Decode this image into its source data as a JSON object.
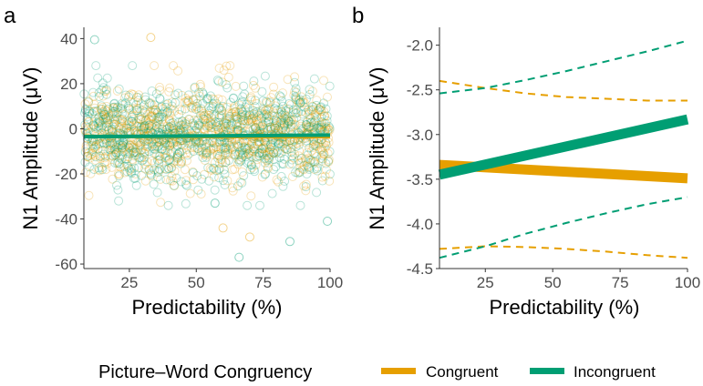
{
  "figure": {
    "legend_title": "Picture–Word Congruency"
  },
  "colors": {
    "congruent": "#E69F00",
    "incongruent": "#009E73",
    "tick": "#4d4d4d",
    "axis": "#333333"
  },
  "legend": [
    {
      "label": "Congruent",
      "color": "#E69F00"
    },
    {
      "label": "Incongruent",
      "color": "#009E73"
    }
  ],
  "chart_data": [
    {
      "panel": "a",
      "type": "scatter",
      "xlabel": "Predictability (%)",
      "ylabel": "N1 Amplitude (μV)",
      "xlim": [
        8,
        100
      ],
      "ylim": [
        -62,
        45
      ],
      "xticks": [
        25,
        50,
        75,
        100
      ],
      "yticks": [
        -60,
        -40,
        -20,
        0,
        20,
        40
      ],
      "grid": false,
      "point_spread": {
        "mean": -2,
        "sd": 10,
        "x_min": 8,
        "x_max": 100,
        "points_per_series": 850
      },
      "outliers": [
        {
          "series": "Incongruent",
          "x": 12,
          "y": 39.5
        },
        {
          "series": "Congruent",
          "x": 33,
          "y": 40.5
        },
        {
          "series": "Incongruent",
          "x": 66,
          "y": -57
        },
        {
          "series": "Congruent",
          "x": 70,
          "y": -48
        },
        {
          "series": "Incongruent",
          "x": 85,
          "y": -50
        },
        {
          "series": "Incongruent",
          "x": 99,
          "y": -41
        },
        {
          "series": "Congruent",
          "x": 60,
          "y": -44
        },
        {
          "series": "Incongruent",
          "x": 57,
          "y": -33
        }
      ],
      "series": [
        {
          "name": "Congruent",
          "fit": {
            "x": [
              8,
              100
            ],
            "y": [
              -3.4,
              -3.5
            ]
          }
        },
        {
          "name": "Incongruent",
          "fit": {
            "x": [
              8,
              100
            ],
            "y": [
              -3.5,
              -2.8
            ]
          }
        }
      ]
    },
    {
      "panel": "b",
      "type": "line",
      "xlabel": "Predictability (%)",
      "ylabel": "N1 Amplitude (μV)",
      "xlim": [
        8,
        100
      ],
      "ylim": [
        -4.5,
        -1.8
      ],
      "xticks": [
        25,
        50,
        75,
        100
      ],
      "yticks": [
        -4.5,
        -4.0,
        -3.5,
        -3.0,
        -2.5,
        -2.0
      ],
      "ytick_labels": [
        "-4.5",
        "-4.0",
        "-3.5",
        "-3.0",
        "-2.5",
        "-2.0"
      ],
      "grid": false,
      "series": [
        {
          "name": "Congruent",
          "fit": {
            "x": [
              8,
              100
            ],
            "y": [
              -3.34,
              -3.49
            ]
          },
          "ci_upper": {
            "x": [
              8,
              25,
              40,
              55,
              70,
              85,
              100
            ],
            "y": [
              -2.4,
              -2.48,
              -2.54,
              -2.58,
              -2.6,
              -2.62,
              -2.62
            ]
          },
          "ci_lower": {
            "x": [
              8,
              25,
              40,
              55,
              70,
              85,
              100
            ],
            "y": [
              -4.28,
              -4.25,
              -4.26,
              -4.28,
              -4.31,
              -4.35,
              -4.38
            ]
          }
        },
        {
          "name": "Incongruent",
          "fit": {
            "x": [
              8,
              100
            ],
            "y": [
              -3.45,
              -2.83
            ]
          },
          "ci_upper": {
            "x": [
              8,
              25,
              40,
              55,
              70,
              85,
              100
            ],
            "y": [
              -2.54,
              -2.48,
              -2.39,
              -2.29,
              -2.18,
              -2.07,
              -1.95
            ]
          },
          "ci_lower": {
            "x": [
              8,
              25,
              40,
              55,
              70,
              85,
              100
            ],
            "y": [
              -4.38,
              -4.25,
              -4.11,
              -3.99,
              -3.88,
              -3.78,
              -3.7
            ]
          }
        }
      ]
    }
  ]
}
